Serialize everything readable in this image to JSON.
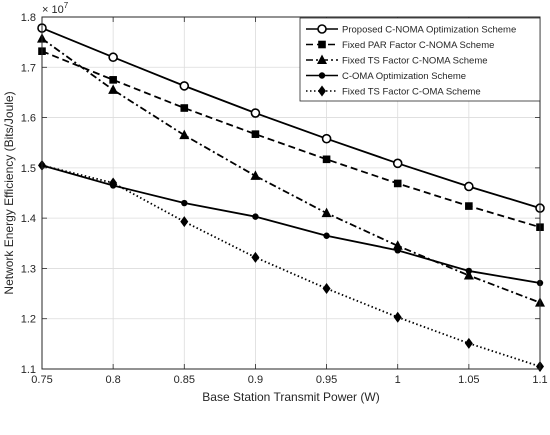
{
  "chart_data": {
    "type": "line",
    "xlabel": "Base Station Transmit Power (W)",
    "ylabel": "Network Energy Efficiency (Bits/Joule)",
    "y_multiplier": "× 10",
    "y_exponent": "7",
    "xlim": [
      0.75,
      1.1
    ],
    "ylim": [
      1.1,
      1.8
    ],
    "x_ticks": [
      "0.75",
      "0.8",
      "0.85",
      "0.9",
      "0.95",
      "1",
      "1.05",
      "1.1"
    ],
    "y_ticks": [
      "1.1",
      "1.2",
      "1.3",
      "1.4",
      "1.5",
      "1.6",
      "1.7",
      "1.8"
    ],
    "grid": true,
    "legend_position": "top-right",
    "x": [
      0.75,
      0.8,
      0.85,
      0.9,
      0.95,
      1.0,
      1.05,
      1.1
    ],
    "series": [
      {
        "name": "Proposed C-NOMA Optimization Scheme",
        "marker": "open-circle",
        "line": "solid",
        "values": [
          1.778,
          1.72,
          1.663,
          1.609,
          1.558,
          1.509,
          1.463,
          1.42
        ]
      },
      {
        "name": "Fixed PAR Factor C-NOMA Scheme",
        "marker": "square",
        "line": "dashed",
        "values": [
          1.732,
          1.675,
          1.619,
          1.567,
          1.517,
          1.469,
          1.424,
          1.382
        ]
      },
      {
        "name": "Fixed TS Factor C-NOMA Scheme",
        "marker": "triangle",
        "line": "dashdot",
        "values": [
          1.757,
          1.655,
          1.565,
          1.484,
          1.41,
          1.345,
          1.286,
          1.232
        ]
      },
      {
        "name": "C-OMA Optimization Scheme",
        "marker": "dot",
        "line": "solid",
        "values": [
          1.505,
          1.465,
          1.43,
          1.403,
          1.365,
          1.336,
          1.295,
          1.271
        ]
      },
      {
        "name": "Fixed TS Factor C-OMA Scheme",
        "marker": "diamond",
        "line": "dotted",
        "values": [
          1.505,
          1.47,
          1.393,
          1.322,
          1.26,
          1.203,
          1.151,
          1.105
        ]
      }
    ]
  }
}
